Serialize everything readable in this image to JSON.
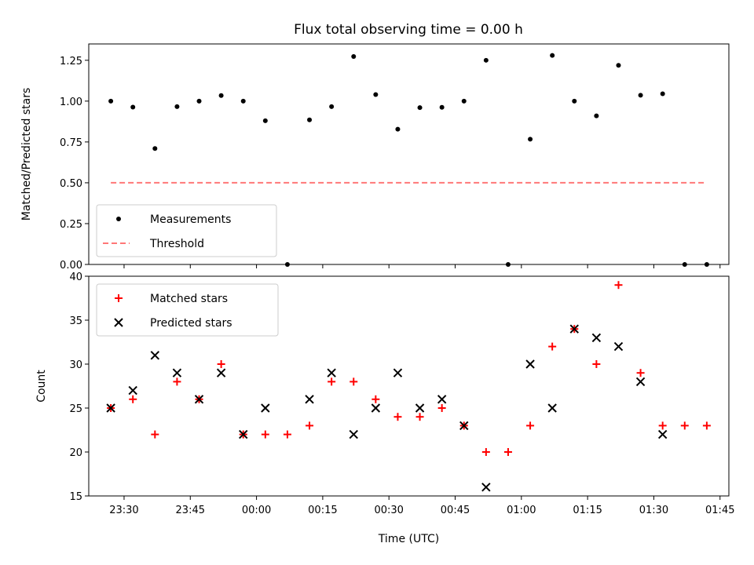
{
  "title": "Flux total observing time = 0.00 h",
  "colors": {
    "measurement": "#000000",
    "threshold": "#ff7777",
    "matched": "#ff0000",
    "predicted": "#000000"
  },
  "chart_data": [
    {
      "type": "scatter",
      "ylabel": "Matched/Predicted stars",
      "xlabel": "",
      "xlim": [
        "23:22",
        "01:47"
      ],
      "ylim": [
        0,
        1.35
      ],
      "yticks": [
        "0.00",
        "0.25",
        "0.50",
        "0.75",
        "1.00",
        "1.25"
      ],
      "legend_position": "lower-left",
      "series": [
        {
          "name": "Measurements",
          "marker": "dot",
          "x": [
            "23:27",
            "23:32",
            "23:37",
            "23:42",
            "23:47",
            "23:52",
            "23:57",
            "00:02",
            "00:07",
            "00:12",
            "00:17",
            "00:22",
            "00:27",
            "00:32",
            "00:37",
            "00:42",
            "00:47",
            "00:52",
            "00:57",
            "01:02",
            "01:07",
            "01:12",
            "01:17",
            "01:22",
            "01:27",
            "01:32",
            "01:37",
            "01:42"
          ],
          "y": [
            1.0,
            0.963,
            0.71,
            0.966,
            1.0,
            1.034,
            1.0,
            0.88,
            0.0,
            0.885,
            0.966,
            1.273,
            1.04,
            0.828,
            0.96,
            0.962,
            1.0,
            1.25,
            0.0,
            0.767,
            1.28,
            1.0,
            0.91,
            1.219,
            1.036,
            1.045,
            0.0,
            0.0
          ]
        },
        {
          "name": "Threshold",
          "marker": "dashed-line",
          "x": [
            "23:27",
            "01:42"
          ],
          "y": [
            0.5,
            0.5
          ]
        }
      ]
    },
    {
      "type": "scatter",
      "ylabel": "Count",
      "xlabel": "Time (UTC)",
      "xlim": [
        "23:22",
        "01:47"
      ],
      "ylim": [
        15,
        40
      ],
      "yticks": [
        "15",
        "20",
        "25",
        "30",
        "35",
        "40"
      ],
      "xticks": [
        "23:30",
        "23:45",
        "00:00",
        "00:15",
        "00:30",
        "00:45",
        "01:00",
        "01:15",
        "01:30",
        "01:45"
      ],
      "legend_position": "upper-left",
      "series": [
        {
          "name": "Matched stars",
          "marker": "plus",
          "x": [
            "23:27",
            "23:32",
            "23:37",
            "23:42",
            "23:47",
            "23:52",
            "23:57",
            "00:02",
            "00:07",
            "00:12",
            "00:17",
            "00:22",
            "00:27",
            "00:32",
            "00:37",
            "00:42",
            "00:47",
            "00:52",
            "00:57",
            "01:02",
            "01:07",
            "01:12",
            "01:17",
            "01:22",
            "01:27",
            "01:32",
            "01:37",
            "01:42"
          ],
          "y": [
            25,
            26,
            22,
            28,
            26,
            30,
            22,
            22,
            22,
            23,
            28,
            28,
            26,
            24,
            24,
            25,
            23,
            20,
            20,
            23,
            32,
            34,
            30,
            39,
            29,
            23,
            23,
            23
          ]
        },
        {
          "name": "Predicted stars",
          "marker": "x",
          "x": [
            "23:27",
            "23:32",
            "23:37",
            "23:42",
            "23:47",
            "23:52",
            "23:57",
            "00:02",
            "00:12",
            "00:17",
            "00:22",
            "00:27",
            "00:32",
            "00:37",
            "00:42",
            "00:47",
            "00:52",
            "01:02",
            "01:07",
            "01:12",
            "01:17",
            "01:22",
            "01:27",
            "01:32"
          ],
          "y": [
            25,
            27,
            31,
            29,
            26,
            29,
            22,
            25,
            26,
            29,
            22,
            25,
            29,
            25,
            26,
            23,
            16,
            30,
            25,
            34,
            33,
            32,
            28,
            22
          ]
        }
      ]
    }
  ]
}
